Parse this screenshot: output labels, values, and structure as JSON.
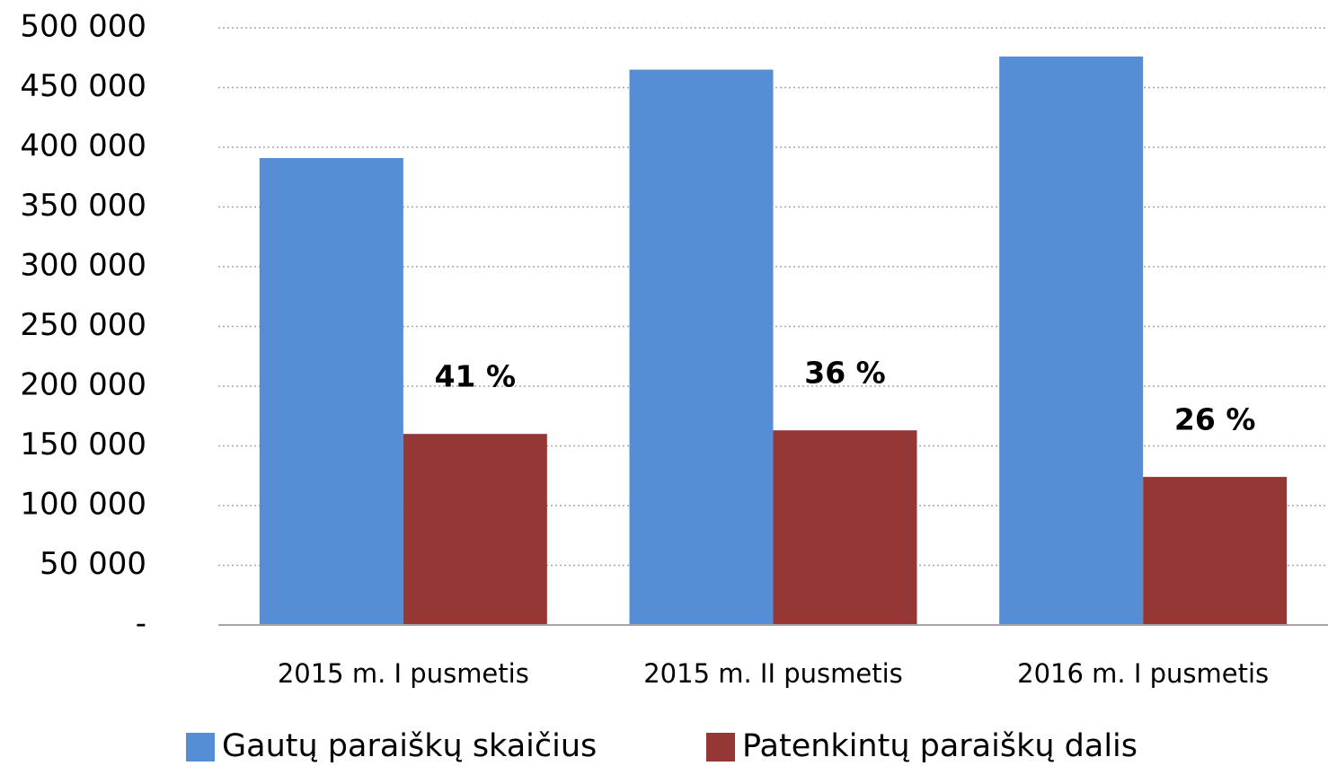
{
  "chart_data": {
    "type": "bar",
    "categories": [
      "2015 m. I pusmetis",
      "2015 m. II pusmetis",
      "2016 m. I pusmetis"
    ],
    "series": [
      {
        "name": "Gautų paraiškų skaičius",
        "color": "#558ed5",
        "values": [
          391000,
          465000,
          476000
        ]
      },
      {
        "name": "Patenkintų paraiškų dalis",
        "color": "#953735",
        "values": [
          160000,
          163000,
          124000
        ]
      }
    ],
    "annotations": [
      "41 %",
      "36 %",
      "26 %"
    ],
    "ylim": [
      0,
      500000
    ],
    "yticks": [
      {
        "value": 0,
        "label": "-"
      },
      {
        "value": 50000,
        "label": "50 000"
      },
      {
        "value": 100000,
        "label": "100 000"
      },
      {
        "value": 150000,
        "label": "150 000"
      },
      {
        "value": 200000,
        "label": "200 000"
      },
      {
        "value": 250000,
        "label": "250 000"
      },
      {
        "value": 300000,
        "label": "300 000"
      },
      {
        "value": 350000,
        "label": "350 000"
      },
      {
        "value": 400000,
        "label": "400 000"
      },
      {
        "value": 450000,
        "label": "450 000"
      },
      {
        "value": 500000,
        "label": "500 000"
      }
    ],
    "grid": true
  }
}
